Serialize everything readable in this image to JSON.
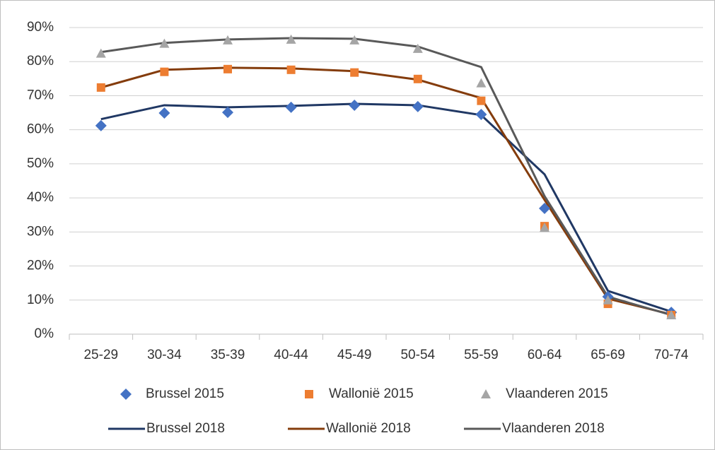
{
  "chart_data": {
    "type": "line",
    "categories": [
      "25-29",
      "30-34",
      "35-39",
      "40-44",
      "45-49",
      "50-54",
      "55-59",
      "60-64",
      "65-69",
      "70-74"
    ],
    "ylim": [
      0,
      90
    ],
    "yticks": [
      {
        "value": 0,
        "label": "0%"
      },
      {
        "value": 10,
        "label": "10%"
      },
      {
        "value": 20,
        "label": "20%"
      },
      {
        "value": 30,
        "label": "30%"
      },
      {
        "value": 40,
        "label": "40%"
      },
      {
        "value": 50,
        "label": "50%"
      },
      {
        "value": 60,
        "label": "60%"
      },
      {
        "value": 70,
        "label": "70%"
      },
      {
        "value": 80,
        "label": "80%"
      },
      {
        "value": 90,
        "label": "90%"
      }
    ],
    "grid": true,
    "series": [
      {
        "name": "Brussel 2015",
        "color": "#4472c4",
        "style": "marker",
        "marker": "diamond",
        "values": [
          61.2,
          64.9,
          65.1,
          66.6,
          67.2,
          66.8,
          64.5,
          36.9,
          11.0,
          6.4
        ]
      },
      {
        "name": "Wallonië 2015",
        "color": "#ed7d31",
        "style": "marker",
        "marker": "square",
        "values": [
          72.4,
          77.0,
          77.8,
          77.6,
          76.8,
          74.9,
          68.5,
          31.7,
          8.9,
          5.6
        ]
      },
      {
        "name": "Vlaanderen 2015",
        "color": "#a5a5a5",
        "style": "marker",
        "marker": "triangle",
        "values": [
          82.4,
          85.3,
          86.3,
          86.5,
          86.3,
          83.8,
          73.7,
          31.3,
          10.0,
          5.6
        ]
      },
      {
        "name": "Brussel 2018",
        "color": "#203864",
        "style": "line",
        "values": [
          63.1,
          67.2,
          66.6,
          67.0,
          67.6,
          67.2,
          64.3,
          46.9,
          12.7,
          6.6
        ]
      },
      {
        "name": "Wallonië 2018",
        "color": "#843c0c",
        "style": "line",
        "values": [
          72.4,
          77.6,
          78.2,
          78.0,
          77.2,
          74.7,
          69.3,
          39.4,
          10.4,
          5.8
        ]
      },
      {
        "name": "Vlaanderen 2018",
        "color": "#595959",
        "style": "line",
        "values": [
          82.8,
          85.5,
          86.5,
          86.9,
          86.7,
          84.4,
          78.4,
          40.5,
          11.0,
          5.6
        ]
      }
    ]
  }
}
